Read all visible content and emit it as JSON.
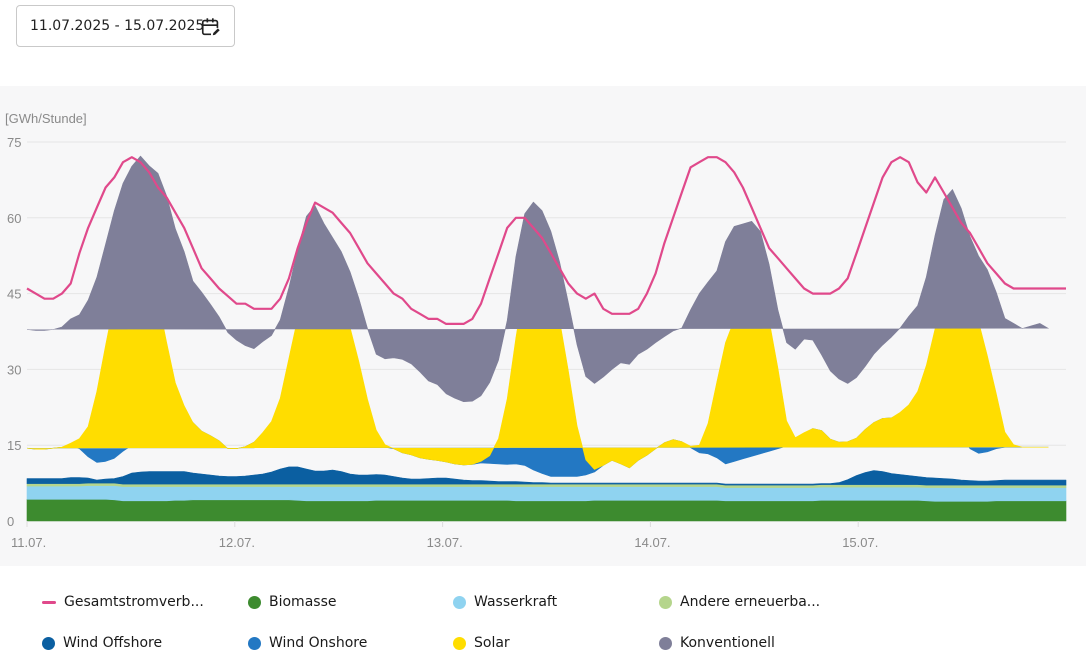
{
  "date_range": {
    "value": "11.07.2025 - 15.07.2025",
    "icon": "calendar-edit-icon"
  },
  "chart_data": {
    "type": "area",
    "stacked": true,
    "ylabel": "[GWh/Stunde]",
    "xlabel": "",
    "ylim": [
      0,
      75
    ],
    "yticks": [
      0,
      15,
      30,
      45,
      60,
      75
    ],
    "ytick_labels": [
      "0",
      "15",
      "30",
      "45",
      "60",
      "75"
    ],
    "xtick_labels": [
      "11.07.",
      "12.07.",
      "13.07.",
      "14.07.",
      "15.07."
    ],
    "x_unit": "hour",
    "x_count": 120,
    "grid": true,
    "legend_position": "bottom",
    "series": [
      {
        "name": "Biomasse",
        "color": "#3d8b2f",
        "type": "area",
        "values": [
          4.3,
          4.3,
          4.3,
          4.3,
          4.3,
          4.3,
          4.3,
          4.3,
          4.3,
          4.3,
          4.2,
          4.0,
          4.0,
          4.0,
          4.0,
          4.0,
          4.0,
          4.1,
          4.1,
          4.2,
          4.2,
          4.2,
          4.2,
          4.2,
          4.2,
          4.2,
          4.2,
          4.2,
          4.2,
          4.2,
          4.2,
          4.1,
          4.0,
          4.0,
          4.0,
          4.0,
          4.0,
          4.0,
          4.0,
          4.0,
          4.1,
          4.1,
          4.1,
          4.1,
          4.1,
          4.1,
          4.1,
          4.1,
          4.1,
          4.1,
          4.1,
          4.1,
          4.1,
          4.1,
          4.1,
          4.1,
          4.0,
          4.0,
          4.0,
          4.0,
          4.0,
          4.0,
          4.0,
          4.0,
          4.0,
          4.1,
          4.1,
          4.1,
          4.1,
          4.1,
          4.1,
          4.1,
          4.1,
          4.1,
          4.1,
          4.1,
          4.1,
          4.1,
          4.1,
          4.1,
          4.0,
          4.0,
          4.0,
          4.0,
          4.0,
          4.0,
          4.0,
          4.0,
          4.0,
          4.0,
          4.0,
          4.1,
          4.1,
          4.1,
          4.1,
          4.1,
          4.1,
          4.1,
          4.1,
          4.1,
          4.1,
          4.1,
          4.1,
          4.0,
          3.9,
          3.9,
          3.9,
          3.9,
          3.9,
          3.9,
          3.9,
          4.0,
          4.0,
          4.0,
          4.0,
          4.0,
          4.0,
          4.0,
          4.0,
          4.0
        ]
      },
      {
        "name": "Wasserkraft",
        "color": "#8fd3f0",
        "type": "area",
        "values": [
          2.6,
          2.6,
          2.6,
          2.6,
          2.6,
          2.6,
          2.6,
          2.7,
          2.7,
          2.7,
          2.8,
          2.8,
          2.8,
          2.8,
          2.8,
          2.8,
          2.8,
          2.7,
          2.7,
          2.6,
          2.6,
          2.6,
          2.6,
          2.6,
          2.6,
          2.6,
          2.6,
          2.6,
          2.6,
          2.6,
          2.6,
          2.7,
          2.8,
          2.8,
          2.8,
          2.8,
          2.8,
          2.8,
          2.8,
          2.8,
          2.7,
          2.7,
          2.7,
          2.7,
          2.7,
          2.7,
          2.7,
          2.7,
          2.7,
          2.7,
          2.7,
          2.7,
          2.7,
          2.7,
          2.7,
          2.7,
          2.8,
          2.8,
          2.8,
          2.8,
          2.8,
          2.8,
          2.8,
          2.8,
          2.8,
          2.7,
          2.7,
          2.7,
          2.7,
          2.7,
          2.7,
          2.7,
          2.7,
          2.7,
          2.7,
          2.7,
          2.7,
          2.7,
          2.7,
          2.7,
          2.6,
          2.6,
          2.6,
          2.6,
          2.6,
          2.6,
          2.6,
          2.6,
          2.6,
          2.6,
          2.6,
          2.6,
          2.6,
          2.6,
          2.6,
          2.6,
          2.6,
          2.6,
          2.6,
          2.6,
          2.6,
          2.6,
          2.6,
          2.6,
          2.7,
          2.7,
          2.7,
          2.7,
          2.7,
          2.7,
          2.7,
          2.6,
          2.6,
          2.6,
          2.6,
          2.6,
          2.6,
          2.6,
          2.6,
          2.6
        ]
      },
      {
        "name": "Andere erneuerbare",
        "color": "#b5d58c",
        "type": "area",
        "values": [
          0.5,
          0.5,
          0.5,
          0.5,
          0.5,
          0.5,
          0.5,
          0.5,
          0.5,
          0.5,
          0.5,
          0.5,
          0.5,
          0.5,
          0.5,
          0.5,
          0.5,
          0.5,
          0.5,
          0.5,
          0.5,
          0.5,
          0.5,
          0.5,
          0.5,
          0.5,
          0.5,
          0.5,
          0.5,
          0.5,
          0.5,
          0.5,
          0.5,
          0.5,
          0.5,
          0.5,
          0.5,
          0.5,
          0.5,
          0.5,
          0.5,
          0.5,
          0.5,
          0.5,
          0.5,
          0.5,
          0.5,
          0.5,
          0.5,
          0.5,
          0.5,
          0.5,
          0.5,
          0.5,
          0.5,
          0.5,
          0.5,
          0.5,
          0.5,
          0.5,
          0.5,
          0.5,
          0.5,
          0.5,
          0.5,
          0.5,
          0.5,
          0.5,
          0.5,
          0.5,
          0.5,
          0.5,
          0.5,
          0.5,
          0.5,
          0.5,
          0.5,
          0.5,
          0.5,
          0.5,
          0.5,
          0.5,
          0.5,
          0.5,
          0.5,
          0.5,
          0.5,
          0.5,
          0.5,
          0.5,
          0.5,
          0.5,
          0.5,
          0.5,
          0.5,
          0.5,
          0.5,
          0.5,
          0.5,
          0.5,
          0.5,
          0.5,
          0.5,
          0.5,
          0.5,
          0.5,
          0.5,
          0.5,
          0.5,
          0.5,
          0.5,
          0.5,
          0.5,
          0.5,
          0.5,
          0.5,
          0.5,
          0.5,
          0.5,
          0.5
        ]
      },
      {
        "name": "Wind Offshore",
        "color": "#0b5fa1",
        "type": "area",
        "values": [
          1.0,
          1.0,
          1.0,
          1.0,
          1.0,
          1.2,
          1.2,
          1.0,
          0.6,
          0.8,
          0.9,
          1.5,
          2.2,
          2.4,
          2.5,
          2.5,
          2.5,
          2.5,
          2.5,
          2.2,
          2.0,
          1.8,
          1.6,
          1.5,
          1.5,
          1.6,
          1.8,
          2.0,
          2.4,
          3.0,
          3.4,
          3.4,
          3.0,
          2.6,
          2.6,
          2.8,
          2.5,
          2.0,
          1.8,
          1.8,
          1.9,
          1.8,
          1.5,
          1.2,
          1.0,
          1.0,
          1.1,
          1.2,
          1.2,
          1.0,
          0.8,
          0.7,
          0.7,
          0.6,
          0.5,
          0.5,
          0.5,
          0.4,
          0.3,
          0.3,
          0.2,
          0.2,
          0.2,
          0.2,
          0.2,
          0.2,
          0.2,
          0.2,
          0.2,
          0.2,
          0.2,
          0.2,
          0.2,
          0.2,
          0.2,
          0.2,
          0.2,
          0.2,
          0.2,
          0.2,
          0.2,
          0.2,
          0.2,
          0.2,
          0.2,
          0.2,
          0.2,
          0.2,
          0.2,
          0.2,
          0.2,
          0.2,
          0.2,
          0.4,
          1.0,
          1.8,
          2.4,
          2.8,
          2.6,
          2.2,
          2.0,
          1.8,
          1.6,
          1.5,
          1.4,
          1.3,
          1.2,
          1.0,
          0.9,
          0.8,
          0.8,
          0.9,
          1.0,
          1.0,
          1.0,
          1.0,
          1.0,
          1.0,
          1.0,
          1.0
        ]
      },
      {
        "name": "Wind Onshore",
        "color": "#2378c3",
        "type": "area",
        "values": [
          6.0,
          5.8,
          5.8,
          6.0,
          6.2,
          6.5,
          5.7,
          4.2,
          3.5,
          3.5,
          4.0,
          5.0,
          5.5,
          6.5,
          7.5,
          9.0,
          11.5,
          12.5,
          12.0,
          10.0,
          8.5,
          7.8,
          7.0,
          5.5,
          5.5,
          5.8,
          6.5,
          8.0,
          8.5,
          8.5,
          8.5,
          9.0,
          9.5,
          9.0,
          8.0,
          9.0,
          8.5,
          7.5,
          6.5,
          6.0,
          5.8,
          5.5,
          5.5,
          5.0,
          4.8,
          4.2,
          3.8,
          3.5,
          3.2,
          3.0,
          3.0,
          3.2,
          3.5,
          3.5,
          3.5,
          3.4,
          3.5,
          3.3,
          2.5,
          1.8,
          1.3,
          1.3,
          1.3,
          1.3,
          1.6,
          2.2,
          3.5,
          4.5,
          3.8,
          3.0,
          4.5,
          5.5,
          6.8,
          8.0,
          8.6,
          8.2,
          7.0,
          6.0,
          5.8,
          5.0,
          4.0,
          4.5,
          5.0,
          5.5,
          6.0,
          6.5,
          7.0,
          7.5,
          8.2,
          10.0,
          11.0,
          10.5,
          8.8,
          8.0,
          7.5,
          7.4,
          8.5,
          9.5,
          10.5,
          11.0,
          12.0,
          13.5,
          14.3,
          14.2,
          13.5,
          12.2,
          10.8,
          8.8,
          6.3,
          5.5,
          5.8,
          6.3,
          6.5,
          6.5,
          6.5,
          6.5,
          6.5,
          6.5
        ]
      },
      {
        "name": "Solar",
        "color": "#ffdd00",
        "type": "area",
        "values": [
          0,
          0,
          0,
          0,
          0,
          0.3,
          2.0,
          6.0,
          14.0,
          23.0,
          31.0,
          37.0,
          40.0,
          38.0,
          33.0,
          25.0,
          14.0,
          5.0,
          1.0,
          0,
          0,
          0,
          0,
          0,
          0,
          0,
          0,
          0.2,
          1.5,
          5.5,
          13.0,
          20.5,
          27.5,
          31.5,
          30.5,
          27.0,
          24.0,
          21.5,
          16.0,
          9.0,
          3.0,
          0.5,
          0,
          0,
          0,
          0,
          0,
          0,
          0,
          0,
          0,
          0,
          0.3,
          1.5,
          5.0,
          13.0,
          25.0,
          36.0,
          41.0,
          41.0,
          38.0,
          31.0,
          21.0,
          10.0,
          3.0,
          0.5,
          0,
          0,
          0,
          0,
          0,
          0,
          0,
          0,
          0,
          0,
          0.3,
          1.5,
          6.0,
          15.0,
          24.0,
          28.0,
          30.0,
          32.0,
          31.0,
          26.0,
          16.0,
          5.0,
          1.0,
          0.2,
          0,
          0,
          0,
          0,
          0,
          0,
          0,
          0,
          0,
          0,
          0.3,
          0.5,
          2.5,
          8.0,
          16.0,
          24.0,
          28.5,
          33.0,
          30.0,
          26.0,
          19.0,
          11.0,
          3.0,
          0.5,
          0,
          0,
          0,
          0,
          0,
          0
        ]
      },
      {
        "name": "Konventionell",
        "color": "#7f7f99",
        "type": "area",
        "values": [
          23.5,
          23.5,
          23.5,
          23.5,
          23.8,
          24.6,
          24.5,
          25.0,
          22.6,
          20.0,
          18.0,
          16.0,
          15.2,
          18.0,
          20.0,
          25.0,
          29.0,
          30.5,
          30.5,
          28.0,
          27.5,
          26.0,
          24.5,
          23.0,
          21.5,
          20.0,
          18.5,
          18.0,
          17.0,
          15.5,
          14.0,
          13.5,
          13.0,
          12.0,
          10.5,
          10.0,
          11.0,
          11.0,
          12.5,
          14.0,
          15.0,
          17.0,
          18.0,
          18.5,
          18.0,
          17.0,
          15.5,
          15.0,
          13.5,
          13.0,
          12.5,
          12.5,
          13.0,
          14.5,
          15.5,
          15.5,
          16.0,
          13.8,
          12.0,
          11.0,
          10.5,
          11.5,
          13.5,
          16.0,
          16.5,
          17.0,
          17.5,
          18.0,
          20.0,
          20.5,
          21.0,
          21.0,
          21.0,
          21.0,
          21.5,
          22.5,
          27.0,
          30.0,
          28.0,
          22.0,
          20.0,
          18.5,
          16.5,
          14.5,
          13.0,
          11.0,
          11.5,
          15.5,
          17.5,
          18.5,
          17.5,
          15.0,
          13.5,
          12.5,
          11.5,
          12.0,
          12.5,
          13.5,
          14.5,
          16.0,
          16.7,
          17.5,
          17.0,
          17.5,
          18.5,
          19.0,
          18.0,
          12.0,
          12.0,
          13.0,
          17.0,
          20.0,
          22.5,
          24.0,
          23.5,
          24.0,
          24.5,
          23.5,
          22.5,
          21.5
        ]
      },
      {
        "name": "Gesamtstromverbrauch",
        "color": "#e0498b",
        "type": "line",
        "values": [
          46,
          45,
          44,
          44,
          45,
          47,
          53,
          58,
          62,
          66,
          68,
          71,
          72,
          71,
          69,
          66,
          64,
          61,
          58,
          54,
          50,
          48,
          46,
          44.5,
          43,
          43,
          42,
          42,
          42,
          44,
          48,
          54,
          59,
          63,
          62,
          61,
          59,
          57,
          54,
          51,
          49,
          47,
          45,
          44,
          42,
          41,
          40,
          40,
          39,
          39,
          39,
          40,
          43,
          48,
          53,
          58,
          60,
          60,
          58,
          56,
          53,
          50,
          47,
          45,
          44,
          45,
          42,
          41,
          41,
          41,
          42,
          45,
          49,
          55,
          60,
          65,
          70,
          71,
          72,
          72,
          71,
          69,
          66,
          62,
          58,
          54,
          52,
          50,
          48,
          46,
          45,
          45,
          45,
          46,
          48,
          53,
          58,
          63,
          68,
          71,
          72,
          71,
          67,
          65,
          68,
          65,
          62,
          59,
          57,
          54,
          51,
          49,
          47,
          46,
          46,
          46,
          46,
          46,
          46,
          46
        ]
      }
    ]
  },
  "legend": {
    "items": [
      {
        "label": "Gesamtstromverb...",
        "color": "#e0498b",
        "marker": "line"
      },
      {
        "label": "Biomasse",
        "color": "#3d8b2f",
        "marker": "dot"
      },
      {
        "label": "Wasserkraft",
        "color": "#8fd3f0",
        "marker": "dot"
      },
      {
        "label": "Andere erneuerba...",
        "color": "#b5d58c",
        "marker": "dot"
      },
      {
        "label": "Wind Offshore",
        "color": "#0b5fa1",
        "marker": "dot"
      },
      {
        "label": "Wind Onshore",
        "color": "#2378c3",
        "marker": "dot"
      },
      {
        "label": "Solar",
        "color": "#ffdd00",
        "marker": "dot"
      },
      {
        "label": "Konventionell",
        "color": "#7f7f99",
        "marker": "dot"
      }
    ]
  }
}
